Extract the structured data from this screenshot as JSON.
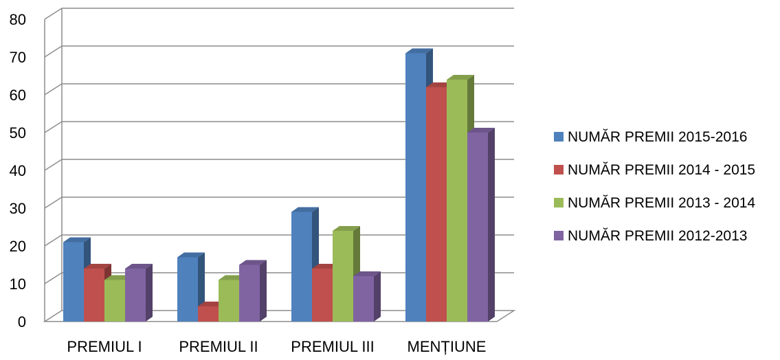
{
  "chart_data": {
    "type": "bar",
    "categories": [
      "PREMIUL I",
      "PREMIUL II",
      "PREMIUL III",
      "MENȚIUNE"
    ],
    "series": [
      {
        "name": "NUMĂR PREMII 2015-2016",
        "values": [
          21,
          17,
          29,
          71
        ],
        "color": "#4F81BD"
      },
      {
        "name": "NUMĂR PREMII 2014 - 2015",
        "values": [
          14,
          4,
          14,
          62
        ],
        "color": "#C0504D"
      },
      {
        "name": "NUMĂR PREMII 2013 - 2014",
        "values": [
          11,
          11,
          24,
          64
        ],
        "color": "#9BBB59"
      },
      {
        "name": "NUMĂR PREMII 2012-2013",
        "values": [
          14,
          15,
          12,
          50
        ],
        "color": "#8064A2"
      }
    ],
    "ylim": [
      0,
      80
    ],
    "yticks": [
      0,
      10,
      20,
      30,
      40,
      50,
      60,
      70,
      80
    ],
    "grid": true,
    "legend_position": "right",
    "style": "3d-clustered-column",
    "gridline_color": "#8C8C8C"
  }
}
